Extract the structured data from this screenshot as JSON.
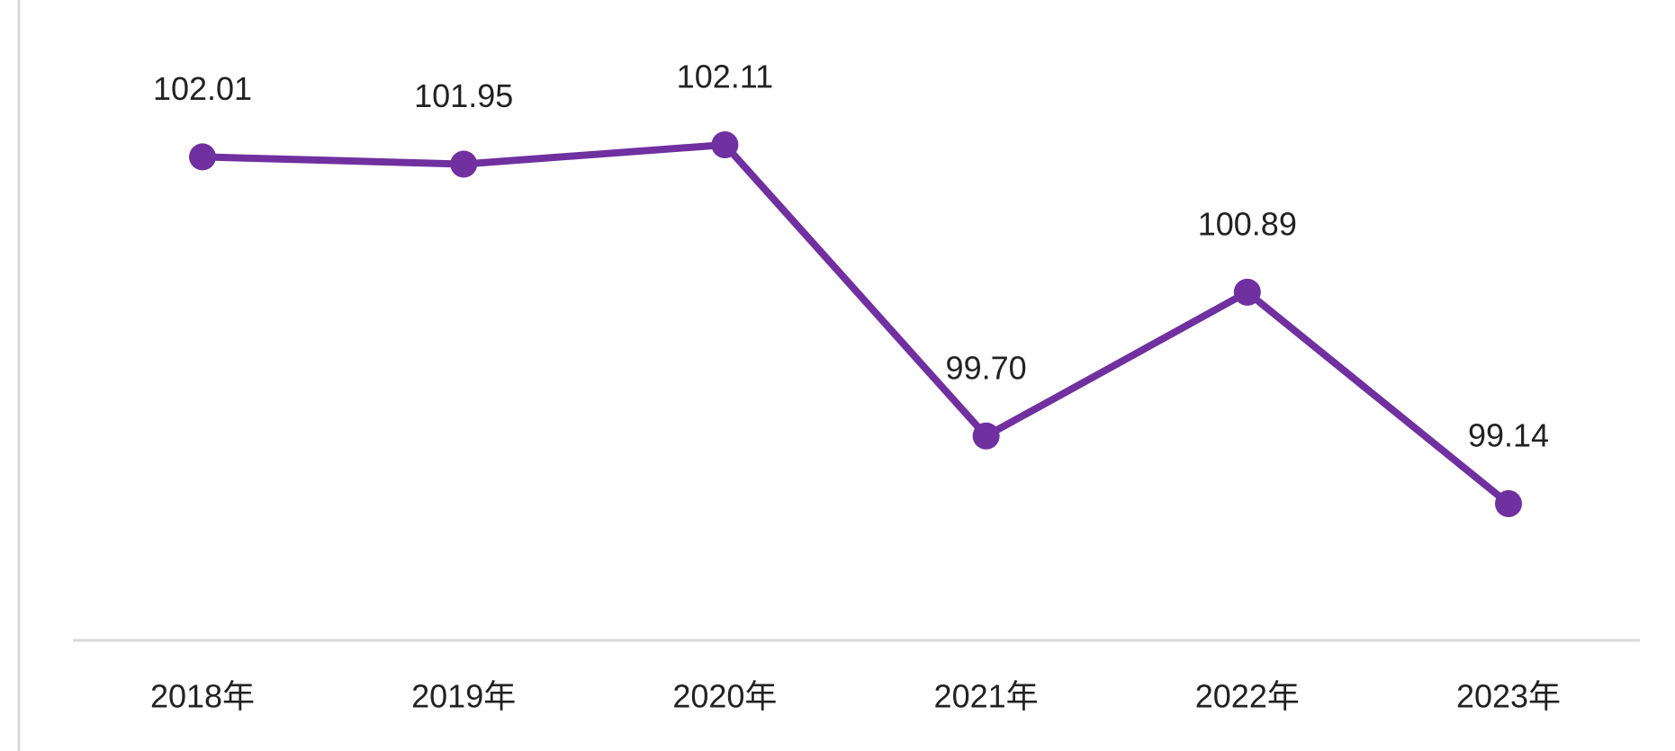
{
  "chart_data": {
    "type": "line",
    "categories": [
      "2018年",
      "2019年",
      "2020年",
      "2021年",
      "2022年",
      "2023年"
    ],
    "values": [
      102.01,
      101.95,
      102.11,
      99.7,
      100.89,
      99.14
    ],
    "value_labels": [
      "102.01",
      "101.95",
      "102.11",
      "99.70",
      "100.89",
      "99.14"
    ],
    "color": "#7030a0"
  }
}
